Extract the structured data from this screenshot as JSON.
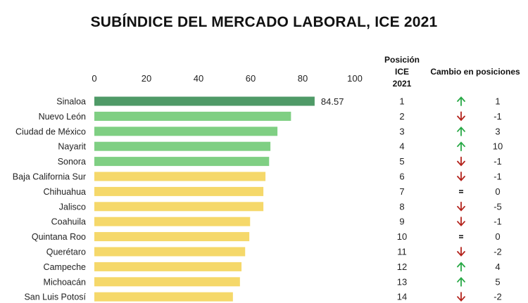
{
  "title": "SUBÍNDICE DEL MERCADO LABORAL, ICE 2021",
  "headers": {
    "position": [
      "Posición",
      "ICE",
      "2021"
    ],
    "change": "Cambio en posiciones"
  },
  "colors": {
    "top": "#4f9a67",
    "green": "#7fcf83",
    "yellow": "#f5d86a",
    "up_arrow": "#27a845",
    "down_arrow": "#b4231c",
    "equal": "#111111"
  },
  "chart_data": {
    "type": "bar",
    "orientation": "horizontal",
    "xlim": [
      0,
      100
    ],
    "ticks": [
      0,
      20,
      40,
      60,
      80,
      100
    ],
    "categories": [
      "Sinaloa",
      "Nuevo León",
      "Ciudad de México",
      "Nayarit",
      "Sonora",
      "Baja California Sur",
      "Chihuahua",
      "Jalisco",
      "Coahuila",
      "Quintana Roo",
      "Querétaro",
      "Campeche",
      "Michoacán",
      "San Luis Potosí"
    ],
    "values": [
      84.57,
      75.5,
      70.3,
      67.6,
      67.1,
      65.7,
      64.9,
      64.9,
      59.8,
      59.5,
      57.9,
      56.5,
      55.9,
      53.2
    ],
    "colors": [
      "top",
      "green",
      "green",
      "green",
      "green",
      "yellow",
      "yellow",
      "yellow",
      "yellow",
      "yellow",
      "yellow",
      "yellow",
      "yellow",
      "yellow"
    ],
    "value_labels": [
      "84.57",
      "",
      "",
      "",
      "",
      "",
      "",
      "",
      "",
      "",
      "",
      "",
      "",
      ""
    ],
    "position": [
      1,
      2,
      3,
      4,
      5,
      6,
      7,
      8,
      9,
      10,
      11,
      12,
      13,
      14
    ],
    "direction": [
      "up",
      "down",
      "up",
      "up",
      "down",
      "down",
      "equal",
      "down",
      "down",
      "equal",
      "down",
      "up",
      "up",
      "down"
    ],
    "change": [
      "1",
      "-1",
      "3",
      "10",
      "-1",
      "-1",
      "0",
      "-5",
      "-1",
      "0",
      "-2",
      "4",
      "5",
      "-2"
    ]
  }
}
